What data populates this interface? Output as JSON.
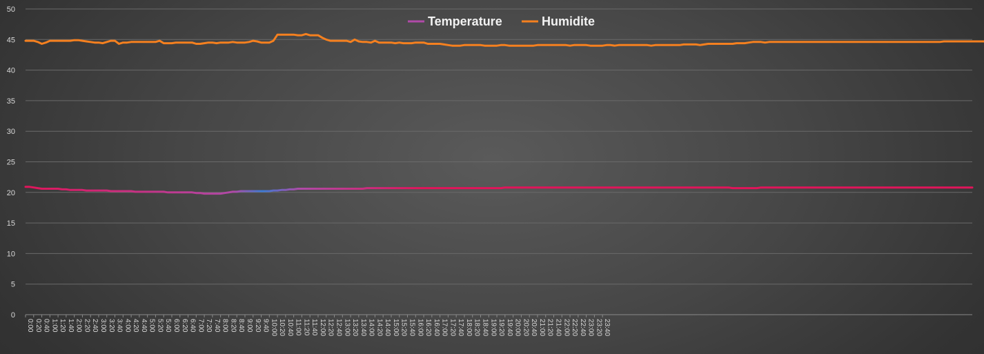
{
  "chart_data": {
    "type": "line",
    "title": "",
    "xlabel": "",
    "ylabel": "",
    "ylim": [
      0,
      50
    ],
    "yticks": [
      0,
      5,
      10,
      15,
      20,
      25,
      30,
      35,
      40,
      45,
      50
    ],
    "grid": true,
    "legend_position": "top-center",
    "interval_minutes": 10,
    "x_tick_labels": [
      "0:00",
      "0:20",
      "0:40",
      "1:00",
      "1:20",
      "1:40",
      "2:00",
      "2:20",
      "2:40",
      "3:00",
      "3:20",
      "3:40",
      "4:00",
      "4:20",
      "4:40",
      "5:00",
      "5:20",
      "5:40",
      "6:00",
      "6:20",
      "6:40",
      "7:00",
      "7:20",
      "7:40",
      "8:00",
      "8:20",
      "8:40",
      "9:00",
      "9:20",
      "9:40",
      "10:00",
      "10:20",
      "10:40",
      "11:00",
      "11:20",
      "11:40",
      "12:00",
      "12:20",
      "12:40",
      "13:00",
      "13:20",
      "13:40",
      "14:00",
      "14:20",
      "14:40",
      "15:00",
      "15:20",
      "15:40",
      "16:00",
      "16:20",
      "16:40",
      "17:00",
      "17:20",
      "17:40",
      "18:00",
      "18:20",
      "18:40",
      "19:00",
      "19:20",
      "19:40",
      "20:00",
      "20:20",
      "20:40",
      "21:00",
      "21:20",
      "21:40",
      "22:00",
      "22:20",
      "22:40",
      "23:00",
      "23:20",
      "23:40"
    ],
    "series": [
      {
        "name": "Temperature",
        "color": "#e0155a",
        "gradient_colors": [
          "#e0155a",
          "#b04aa8",
          "#3c7bd4"
        ],
        "values": [
          20.9,
          20.9,
          20.8,
          20.7,
          20.6,
          20.6,
          20.6,
          20.6,
          20.6,
          20.5,
          20.5,
          20.4,
          20.4,
          20.4,
          20.4,
          20.3,
          20.3,
          20.3,
          20.3,
          20.3,
          20.3,
          20.2,
          20.2,
          20.2,
          20.2,
          20.2,
          20.2,
          20.1,
          20.1,
          20.1,
          20.1,
          20.1,
          20.1,
          20.1,
          20.1,
          20.0,
          20.0,
          20.0,
          20.0,
          20.0,
          20.0,
          20.0,
          19.9,
          19.9,
          19.8,
          19.8,
          19.8,
          19.8,
          19.8,
          19.9,
          20.0,
          20.1,
          20.1,
          20.2,
          20.2,
          20.2,
          20.2,
          20.2,
          20.2,
          20.2,
          20.2,
          20.3,
          20.3,
          20.4,
          20.4,
          20.5,
          20.5,
          20.6,
          20.6,
          20.6,
          20.6,
          20.6,
          20.6,
          20.6,
          20.6,
          20.6,
          20.6,
          20.6,
          20.6,
          20.6,
          20.6,
          20.6,
          20.6,
          20.6,
          20.7,
          20.7,
          20.7,
          20.7,
          20.7,
          20.7,
          20.7,
          20.7,
          20.7,
          20.7,
          20.7,
          20.7,
          20.7,
          20.7,
          20.7,
          20.7,
          20.7,
          20.7,
          20.7,
          20.7,
          20.7,
          20.7,
          20.7,
          20.7,
          20.7,
          20.7,
          20.7,
          20.7,
          20.7,
          20.7,
          20.7,
          20.7,
          20.7,
          20.7,
          20.8,
          20.8,
          20.8,
          20.8,
          20.8,
          20.8,
          20.8,
          20.8,
          20.8,
          20.8,
          20.8,
          20.8,
          20.8,
          20.8,
          20.8,
          20.8,
          20.8,
          20.8,
          20.8,
          20.8,
          20.8,
          20.8,
          20.8,
          20.8,
          20.8,
          20.8,
          20.8,
          20.8,
          20.8,
          20.8,
          20.8,
          20.8,
          20.8,
          20.8,
          20.8,
          20.8,
          20.8,
          20.8,
          20.8,
          20.8,
          20.8,
          20.8,
          20.8,
          20.8,
          20.8,
          20.8,
          20.8,
          20.8,
          20.8,
          20.8,
          20.8,
          20.8,
          20.8,
          20.8,
          20.8,
          20.8,
          20.7,
          20.7,
          20.7,
          20.7,
          20.7,
          20.7,
          20.7,
          20.8,
          20.8,
          20.8,
          20.8,
          20.8,
          20.8,
          20.8,
          20.8,
          20.8,
          20.8,
          20.8,
          20.8,
          20.8,
          20.8,
          20.8,
          20.8,
          20.8,
          20.8,
          20.8,
          20.8,
          20.8,
          20.8,
          20.8,
          20.8,
          20.8,
          20.8,
          20.8,
          20.8,
          20.8,
          20.8,
          20.8,
          20.8,
          20.8,
          20.8,
          20.8,
          20.8,
          20.8,
          20.8,
          20.8,
          20.8,
          20.8,
          20.8,
          20.8,
          20.8,
          20.8,
          20.8,
          20.8,
          20.8,
          20.8,
          20.8,
          20.8,
          20.8,
          20.8
        ]
      },
      {
        "name": "Humidite",
        "color": "#f5801f",
        "values": [
          44.8,
          44.8,
          44.8,
          44.6,
          44.3,
          44.5,
          44.8,
          44.8,
          44.8,
          44.8,
          44.8,
          44.8,
          44.9,
          44.9,
          44.8,
          44.7,
          44.6,
          44.5,
          44.5,
          44.4,
          44.6,
          44.8,
          44.8,
          44.3,
          44.5,
          44.5,
          44.6,
          44.6,
          44.6,
          44.6,
          44.6,
          44.6,
          44.6,
          44.8,
          44.4,
          44.4,
          44.4,
          44.5,
          44.5,
          44.5,
          44.5,
          44.5,
          44.3,
          44.3,
          44.4,
          44.5,
          44.5,
          44.4,
          44.5,
          44.5,
          44.5,
          44.6,
          44.5,
          44.5,
          44.5,
          44.6,
          44.8,
          44.7,
          44.5,
          44.5,
          44.5,
          44.8,
          45.8,
          45.8,
          45.8,
          45.8,
          45.8,
          45.7,
          45.7,
          45.9,
          45.7,
          45.7,
          45.7,
          45.3,
          45.0,
          44.8,
          44.8,
          44.8,
          44.8,
          44.8,
          44.6,
          45.0,
          44.7,
          44.6,
          44.6,
          44.5,
          44.8,
          44.5,
          44.5,
          44.5,
          44.5,
          44.4,
          44.5,
          44.4,
          44.4,
          44.4,
          44.5,
          44.5,
          44.5,
          44.3,
          44.3,
          44.3,
          44.3,
          44.2,
          44.1,
          44.0,
          44.0,
          44.0,
          44.1,
          44.1,
          44.1,
          44.1,
          44.1,
          44.0,
          44.0,
          44.0,
          44.0,
          44.1,
          44.1,
          44.0,
          44.0,
          44.0,
          44.0,
          44.0,
          44.0,
          44.0,
          44.1,
          44.1,
          44.1,
          44.1,
          44.1,
          44.1,
          44.1,
          44.1,
          44.0,
          44.1,
          44.1,
          44.1,
          44.1,
          44.0,
          44.0,
          44.0,
          44.0,
          44.1,
          44.1,
          44.0,
          44.1,
          44.1,
          44.1,
          44.1,
          44.1,
          44.1,
          44.1,
          44.1,
          44.0,
          44.1,
          44.1,
          44.1,
          44.1,
          44.1,
          44.1,
          44.1,
          44.2,
          44.2,
          44.2,
          44.2,
          44.1,
          44.2,
          44.3,
          44.3,
          44.3,
          44.3,
          44.3,
          44.3,
          44.3,
          44.4,
          44.4,
          44.4,
          44.5,
          44.6,
          44.6,
          44.6,
          44.5,
          44.6,
          44.6,
          44.6,
          44.6,
          44.6,
          44.6,
          44.6,
          44.6,
          44.6,
          44.6,
          44.6,
          44.6,
          44.6,
          44.6,
          44.6,
          44.6,
          44.6,
          44.6,
          44.6,
          44.6,
          44.6,
          44.6,
          44.6,
          44.6,
          44.6,
          44.6,
          44.6,
          44.6,
          44.6,
          44.6,
          44.6,
          44.6,
          44.6,
          44.6,
          44.6,
          44.6,
          44.6,
          44.6,
          44.6,
          44.6,
          44.6,
          44.6,
          44.6,
          44.7,
          44.7,
          44.7,
          44.7,
          44.7,
          44.7,
          44.7,
          44.7,
          44.7,
          44.7,
          44.7,
          44.8,
          44.8
        ]
      }
    ]
  }
}
